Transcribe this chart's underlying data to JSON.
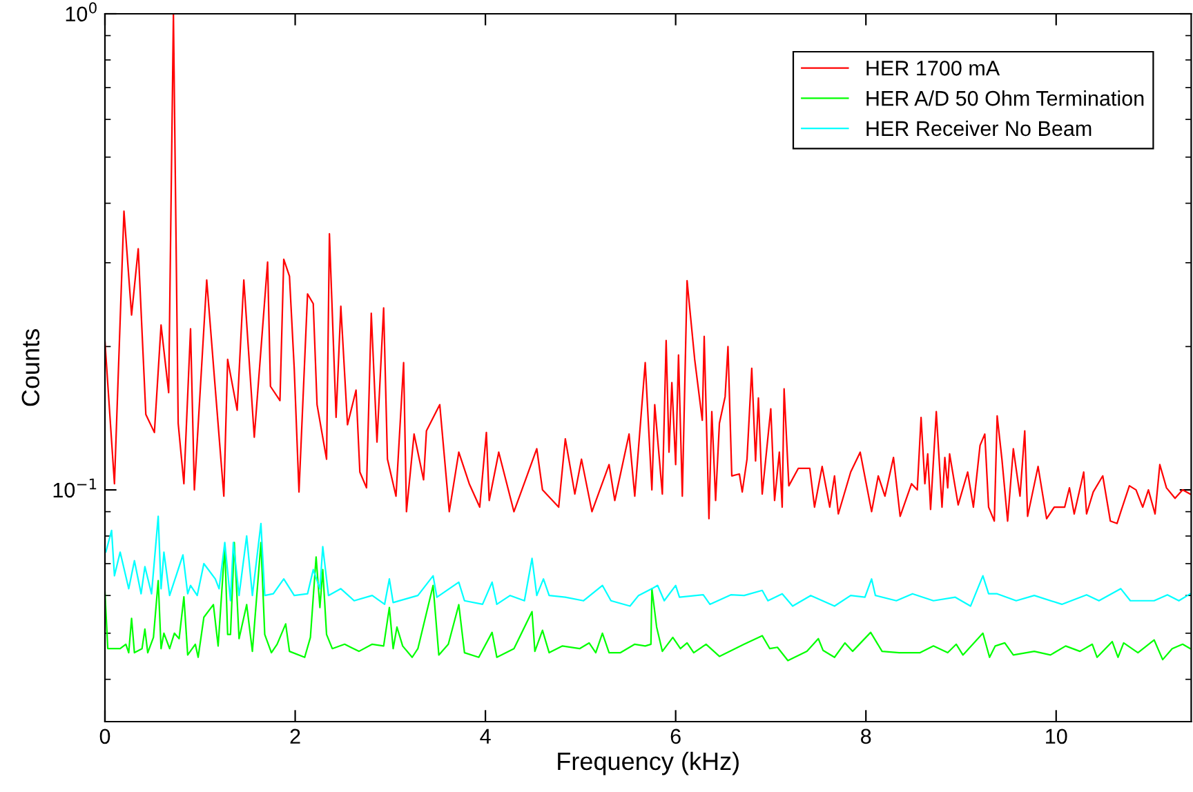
{
  "chart_data": {
    "type": "line",
    "xlabel": "Frequency (kHz)",
    "ylabel": "Counts",
    "log": "y",
    "grid": false,
    "legend": "top right",
    "xlim": [
      0,
      11.42
    ],
    "xticks": [
      0,
      2,
      4,
      6,
      8,
      10
    ],
    "ylim": [
      0.0326,
      1
    ],
    "yticks": [
      {
        "value": 1,
        "label": "10$^{0}$"
      },
      {
        "value": 0.1,
        "label": "10$^{−1}$"
      }
    ],
    "series": [
      {
        "name": "HER 1700 mA",
        "color": "#ff0000",
        "x": [
          0,
          0.1,
          0.2,
          0.28,
          0.35,
          0.43,
          0.52,
          0.59,
          0.67,
          0.72,
          0.77,
          0.83,
          0.9,
          0.94,
          1.07,
          1.15,
          1.25,
          1.29,
          1.39,
          1.46,
          1.57,
          1.71,
          1.74,
          1.84,
          1.88,
          1.94,
          1.99,
          2.04,
          2.13,
          2.19,
          2.23,
          2.33,
          2.36,
          2.43,
          2.48,
          2.55,
          2.64,
          2.68,
          2.75,
          2.8,
          2.86,
          2.93,
          2.97,
          3.06,
          3.14,
          3.17,
          3.25,
          3.35,
          3.38,
          3.52,
          3.62,
          3.72,
          3.83,
          3.94,
          4.01,
          4.04,
          4.14,
          4.3,
          4.54,
          4.6,
          4.77,
          4.84,
          4.94,
          5.01,
          5.12,
          5.3,
          5.36,
          5.51,
          5.57,
          5.68,
          5.75,
          5.78,
          5.86,
          5.9,
          5.93,
          5.96,
          6.0,
          6.03,
          6.07,
          6.12,
          6.2,
          6.28,
          6.3,
          6.35,
          6.38,
          6.42,
          6.46,
          6.52,
          6.55,
          6.59,
          6.67,
          6.7,
          6.75,
          6.8,
          6.84,
          6.87,
          6.91,
          7.0,
          7.04,
          7.09,
          7.12,
          7.14,
          7.19,
          7.29,
          7.41,
          7.46,
          7.54,
          7.62,
          7.67,
          7.71,
          7.84,
          7.94,
          8.06,
          8.13,
          8.2,
          8.29,
          8.36,
          8.48,
          8.54,
          8.58,
          8.62,
          8.65,
          8.68,
          8.74,
          8.8,
          8.83,
          8.86,
          8.88,
          8.97,
          9.07,
          9.13,
          9.2,
          9.25,
          9.29,
          9.35,
          9.38,
          9.43,
          9.49,
          9.55,
          9.62,
          9.67,
          9.7,
          9.81,
          9.9,
          9.98,
          10.09,
          10.14,
          10.19,
          10.29,
          10.32,
          10.39,
          10.49,
          10.57,
          10.64,
          10.68,
          10.77,
          10.84,
          10.91,
          10.97,
          11.04,
          11.09,
          11.16,
          11.25,
          11.33,
          11.41
        ],
        "values": [
          0.205,
          0.103,
          0.385,
          0.233,
          0.321,
          0.144,
          0.132,
          0.222,
          0.16,
          1.0,
          0.138,
          0.103,
          0.218,
          0.1,
          0.276,
          0.173,
          0.097,
          0.188,
          0.147,
          0.276,
          0.129,
          0.301,
          0.165,
          0.154,
          0.305,
          0.281,
          0.18,
          0.099,
          0.258,
          0.246,
          0.151,
          0.116,
          0.345,
          0.142,
          0.243,
          0.137,
          0.162,
          0.109,
          0.101,
          0.235,
          0.126,
          0.241,
          0.116,
          0.097,
          0.185,
          0.09,
          0.131,
          0.105,
          0.133,
          0.151,
          0.09,
          0.12,
          0.103,
          0.092,
          0.132,
          0.095,
          0.12,
          0.09,
          0.122,
          0.1,
          0.092,
          0.128,
          0.098,
          0.116,
          0.09,
          0.113,
          0.095,
          0.131,
          0.097,
          0.185,
          0.1,
          0.151,
          0.098,
          0.206,
          0.12,
          0.168,
          0.113,
          0.192,
          0.097,
          0.275,
          0.188,
          0.14,
          0.21,
          0.087,
          0.146,
          0.095,
          0.138,
          0.157,
          0.2,
          0.107,
          0.108,
          0.099,
          0.116,
          0.18,
          0.115,
          0.156,
          0.098,
          0.148,
          0.095,
          0.12,
          0.092,
          0.163,
          0.102,
          0.111,
          0.111,
          0.092,
          0.112,
          0.092,
          0.107,
          0.089,
          0.109,
          0.12,
          0.09,
          0.107,
          0.097,
          0.117,
          0.088,
          0.103,
          0.1,
          0.142,
          0.103,
          0.119,
          0.091,
          0.146,
          0.092,
          0.117,
          0.101,
          0.119,
          0.093,
          0.109,
          0.092,
          0.124,
          0.131,
          0.092,
          0.086,
          0.143,
          0.116,
          0.086,
          0.122,
          0.097,
          0.133,
          0.088,
          0.112,
          0.087,
          0.092,
          0.092,
          0.101,
          0.089,
          0.109,
          0.089,
          0.099,
          0.107,
          0.086,
          0.085,
          0.09,
          0.102,
          0.1,
          0.092,
          0.1,
          0.089,
          0.113,
          0.101,
          0.096,
          0.1,
          0.098
        ]
      },
      {
        "name": "HER A/D 50 Ohm Termination",
        "color": "#00ff00",
        "x": [
          0,
          0.03,
          0.16,
          0.22,
          0.25,
          0.28,
          0.31,
          0.39,
          0.42,
          0.45,
          0.51,
          0.56,
          0.59,
          0.62,
          0.68,
          0.73,
          0.78,
          0.83,
          0.87,
          0.95,
          0.98,
          1.04,
          1.14,
          1.19,
          1.26,
          1.29,
          1.32,
          1.36,
          1.41,
          1.49,
          1.55,
          1.64,
          1.68,
          1.75,
          1.81,
          1.9,
          1.94,
          2.1,
          2.16,
          2.22,
          2.26,
          2.29,
          2.33,
          2.39,
          2.52,
          2.67,
          2.81,
          2.93,
          2.99,
          3.03,
          3.07,
          3.13,
          3.23,
          3.29,
          3.45,
          3.51,
          3.61,
          3.72,
          3.78,
          3.93,
          4.07,
          4.12,
          4.3,
          4.49,
          4.52,
          4.6,
          4.67,
          4.81,
          4.99,
          5.09,
          5.16,
          5.23,
          5.3,
          5.42,
          5.57,
          5.68,
          5.74,
          5.75,
          5.8,
          5.86,
          5.97,
          6.05,
          6.12,
          6.19,
          6.32,
          6.46,
          6.72,
          6.91,
          6.99,
          7.07,
          7.18,
          7.38,
          7.5,
          7.55,
          7.67,
          7.78,
          7.86,
          8.05,
          8.17,
          8.35,
          8.57,
          8.71,
          8.86,
          8.95,
          9.02,
          9.23,
          9.3,
          9.36,
          9.46,
          9.55,
          9.77,
          9.94,
          10.1,
          10.25,
          10.38,
          10.43,
          10.59,
          10.65,
          10.71,
          10.86,
          11.03,
          11.12,
          11.22,
          11.33,
          11.41
        ],
        "values": [
          0.061,
          0.0464,
          0.0464,
          0.0474,
          0.0455,
          0.0537,
          0.0455,
          0.0464,
          0.051,
          0.0455,
          0.049,
          0.0645,
          0.0464,
          0.05,
          0.0464,
          0.05,
          0.0487,
          0.0596,
          0.045,
          0.0474,
          0.0445,
          0.054,
          0.0574,
          0.047,
          0.076,
          0.0497,
          0.0497,
          0.0775,
          0.0487,
          0.0574,
          0.0458,
          0.0775,
          0.0497,
          0.0455,
          0.0474,
          0.0523,
          0.0458,
          0.0445,
          0.049,
          0.0723,
          0.0566,
          0.068,
          0.0497,
          0.0464,
          0.0474,
          0.0458,
          0.0474,
          0.047,
          0.0566,
          0.0464,
          0.0515,
          0.047,
          0.0445,
          0.0464,
          0.063,
          0.045,
          0.0474,
          0.0574,
          0.0455,
          0.0445,
          0.0502,
          0.0445,
          0.0464,
          0.0555,
          0.0458,
          0.0507,
          0.0455,
          0.047,
          0.0464,
          0.0477,
          0.0455,
          0.05,
          0.0455,
          0.0455,
          0.0474,
          0.047,
          0.0474,
          0.062,
          0.0515,
          0.0458,
          0.049,
          0.0464,
          0.0477,
          0.0455,
          0.0474,
          0.0447,
          0.0474,
          0.0494,
          0.0464,
          0.0467,
          0.0438,
          0.0458,
          0.0487,
          0.046,
          0.0445,
          0.0477,
          0.0458,
          0.0502,
          0.0458,
          0.0455,
          0.0455,
          0.047,
          0.0455,
          0.0474,
          0.045,
          0.05,
          0.0445,
          0.047,
          0.0477,
          0.045,
          0.0458,
          0.045,
          0.047,
          0.0458,
          0.0474,
          0.0445,
          0.048,
          0.0445,
          0.0477,
          0.0455,
          0.0484,
          0.044,
          0.0464,
          0.0474,
          0.0464
        ]
      },
      {
        "name": "HER Receiver No Beam",
        "color": "#00ffff",
        "x": [
          0.01,
          0.07,
          0.1,
          0.16,
          0.25,
          0.31,
          0.38,
          0.42,
          0.49,
          0.56,
          0.59,
          0.62,
          0.68,
          0.82,
          0.87,
          0.9,
          0.97,
          1.04,
          1.16,
          1.2,
          1.26,
          1.32,
          1.35,
          1.41,
          1.49,
          1.55,
          1.64,
          1.68,
          1.77,
          1.88,
          1.99,
          2.13,
          2.19,
          2.26,
          2.29,
          2.35,
          2.48,
          2.62,
          2.81,
          2.94,
          2.99,
          3.03,
          3.29,
          3.45,
          3.49,
          3.72,
          3.78,
          3.97,
          4.07,
          4.12,
          4.26,
          4.41,
          4.49,
          4.54,
          4.61,
          4.67,
          4.84,
          5.03,
          5.23,
          5.32,
          5.52,
          5.61,
          5.75,
          5.81,
          5.88,
          6.0,
          6.04,
          6.29,
          6.36,
          6.58,
          6.72,
          6.91,
          6.97,
          7.12,
          7.23,
          7.42,
          7.67,
          7.84,
          7.99,
          8.06,
          8.1,
          8.32,
          8.49,
          8.71,
          8.94,
          9.1,
          9.23,
          9.29,
          9.38,
          9.58,
          9.77,
          10.06,
          10.32,
          10.45,
          10.68,
          10.78,
          11.03,
          11.17,
          11.29,
          11.41
        ],
        "values": [
          0.0741,
          0.0822,
          0.066,
          0.074,
          0.062,
          0.071,
          0.0605,
          0.069,
          0.0605,
          0.088,
          0.062,
          0.074,
          0.06,
          0.073,
          0.0605,
          0.063,
          0.06,
          0.07,
          0.065,
          0.062,
          0.0775,
          0.0585,
          0.0775,
          0.06,
          0.08,
          0.06,
          0.085,
          0.06,
          0.0605,
          0.065,
          0.06,
          0.0605,
          0.068,
          0.062,
          0.076,
          0.06,
          0.062,
          0.0585,
          0.06,
          0.0575,
          0.065,
          0.058,
          0.06,
          0.066,
          0.0595,
          0.064,
          0.0585,
          0.0575,
          0.064,
          0.0575,
          0.06,
          0.0585,
          0.0718,
          0.06,
          0.065,
          0.06,
          0.0595,
          0.0585,
          0.063,
          0.0585,
          0.057,
          0.06,
          0.062,
          0.063,
          0.0585,
          0.063,
          0.0595,
          0.0602,
          0.0575,
          0.0602,
          0.06,
          0.0615,
          0.0585,
          0.0605,
          0.057,
          0.06,
          0.057,
          0.06,
          0.0595,
          0.065,
          0.06,
          0.0585,
          0.0605,
          0.0585,
          0.0595,
          0.057,
          0.066,
          0.0605,
          0.0605,
          0.0585,
          0.06,
          0.0575,
          0.0602,
          0.0585,
          0.062,
          0.0585,
          0.0585,
          0.0602,
          0.0585,
          0.0605
        ]
      }
    ]
  }
}
